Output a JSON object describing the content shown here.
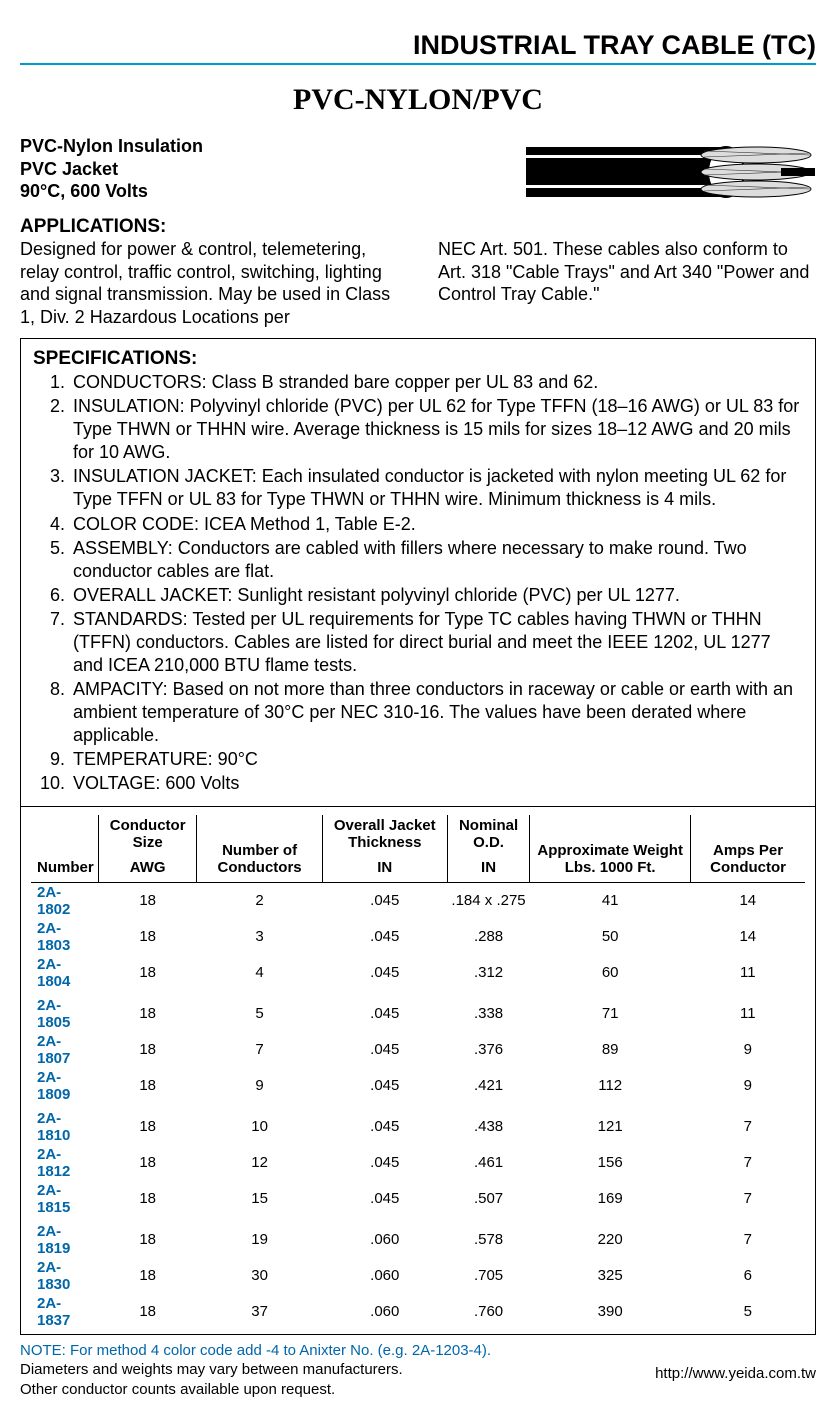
{
  "header": {
    "title": "INDUSTRIAL TRAY CABLE (TC)"
  },
  "subtitle": "PVC-NYLON/PVC",
  "intro": {
    "line1": "PVC-Nylon Insulation",
    "line2": "PVC Jacket",
    "line3": "90°C, 600 Volts"
  },
  "applications": {
    "heading": "APPLICATIONS:",
    "col1": "Designed for power & control, telemetering, relay control, traffic control, switching, lighting and signal transmission. May be used in Class 1, Div. 2 Hazardous Locations per",
    "col2": "NEC Art. 501. These cables also conform to Art. 318 \"Cable Trays\" and Art 340 \"Power and Control Tray Cable.\""
  },
  "specifications": {
    "heading": "SPECIFICATIONS:",
    "items": [
      "CONDUCTORS: Class B stranded bare copper per UL 83 and 62.",
      "INSULATION: Polyvinyl chloride (PVC) per UL 62 for Type TFFN (18–16 AWG) or UL 83 for Type THWN or THHN wire. Average thickness is 15 mils for sizes 18–12 AWG and 20 mils for 10 AWG.",
      "INSULATION JACKET: Each insulated conductor is jacketed with nylon meeting UL 62 for Type TFFN or UL 83 for Type THWN or THHN wire. Minimum thickness is 4 mils.",
      "COLOR CODE: ICEA Method 1, Table E-2.",
      "ASSEMBLY: Conductors are cabled with fillers where necessary to make round. Two conductor cables are flat.",
      "OVERALL JACKET: Sunlight resistant polyvinyl chloride (PVC) per UL 1277.",
      "STANDARDS: Tested per UL requirements for Type TC cables having THWN or THHN (TFFN) conductors. Cables are listed for direct burial and meet the IEEE 1202, UL 1277 and ICEA 210,000 BTU flame tests.",
      "AMPACITY: Based on not more than three conductors in raceway or cable or earth with an ambient temperature of 30°C per NEC 310-16. The values have been derated where applicable.",
      "TEMPERATURE: 90°C",
      "VOLTAGE: 600 Volts"
    ]
  },
  "table": {
    "col_headers": {
      "number": "Number",
      "cond_size_top": "Conductor Size",
      "cond_size_bot": "AWG",
      "num_cond_top": "Number of Conductors",
      "thick_top": "Overall Jacket Thickness",
      "thick_bot": "IN",
      "od_top": "Nominal O.D.",
      "od_bot": "IN",
      "weight": "Approximate Weight Lbs. 1000 Ft.",
      "amps": "Amps Per Conductor"
    },
    "rows": [
      {
        "n": "2A-1802",
        "awg": "18",
        "cond": "2",
        "th": ".045",
        "od": ".184 x .275",
        "wt": "41",
        "amp": "14",
        "gap": false
      },
      {
        "n": "2A-1803",
        "awg": "18",
        "cond": "3",
        "th": ".045",
        "od": ".288",
        "wt": "50",
        "amp": "14",
        "gap": false
      },
      {
        "n": "2A-1804",
        "awg": "18",
        "cond": "4",
        "th": ".045",
        "od": ".312",
        "wt": "60",
        "amp": "11",
        "gap": false
      },
      {
        "n": "2A-1805",
        "awg": "18",
        "cond": "5",
        "th": ".045",
        "od": ".338",
        "wt": "71",
        "amp": "11",
        "gap": true
      },
      {
        "n": "2A-1807",
        "awg": "18",
        "cond": "7",
        "th": ".045",
        "od": ".376",
        "wt": "89",
        "amp": "9",
        "gap": false
      },
      {
        "n": "2A-1809",
        "awg": "18",
        "cond": "9",
        "th": ".045",
        "od": ".421",
        "wt": "112",
        "amp": "9",
        "gap": false
      },
      {
        "n": "2A-1810",
        "awg": "18",
        "cond": "10",
        "th": ".045",
        "od": ".438",
        "wt": "121",
        "amp": "7",
        "gap": true
      },
      {
        "n": "2A-1812",
        "awg": "18",
        "cond": "12",
        "th": ".045",
        "od": ".461",
        "wt": "156",
        "amp": "7",
        "gap": false
      },
      {
        "n": "2A-1815",
        "awg": "18",
        "cond": "15",
        "th": ".045",
        "od": ".507",
        "wt": "169",
        "amp": "7",
        "gap": false
      },
      {
        "n": "2A-1819",
        "awg": "18",
        "cond": "19",
        "th": ".060",
        "od": ".578",
        "wt": "220",
        "amp": "7",
        "gap": true
      },
      {
        "n": "2A-1830",
        "awg": "18",
        "cond": "30",
        "th": ".060",
        "od": ".705",
        "wt": "325",
        "amp": "6",
        "gap": false
      },
      {
        "n": "2A-1837",
        "awg": "18",
        "cond": "37",
        "th": ".060",
        "od": ".760",
        "wt": "390",
        "amp": "5",
        "gap": false
      }
    ]
  },
  "notes": {
    "line1": "NOTE: For method 4 color code add -4 to Anixter No. (e.g. 2A-1203-4).",
    "line2": "Diameters and weights may vary between manufacturers.",
    "line3": "Other conductor counts available upon request."
  },
  "url": "http://www.yeida.com.tw",
  "colors": {
    "accent_rule": "#0099cc",
    "link_blue": "#0066aa",
    "text": "#000000",
    "bg": "#ffffff"
  },
  "typography": {
    "header_pt": 27,
    "subtitle_pt": 30,
    "body_pt": 18,
    "table_pt": 15
  }
}
